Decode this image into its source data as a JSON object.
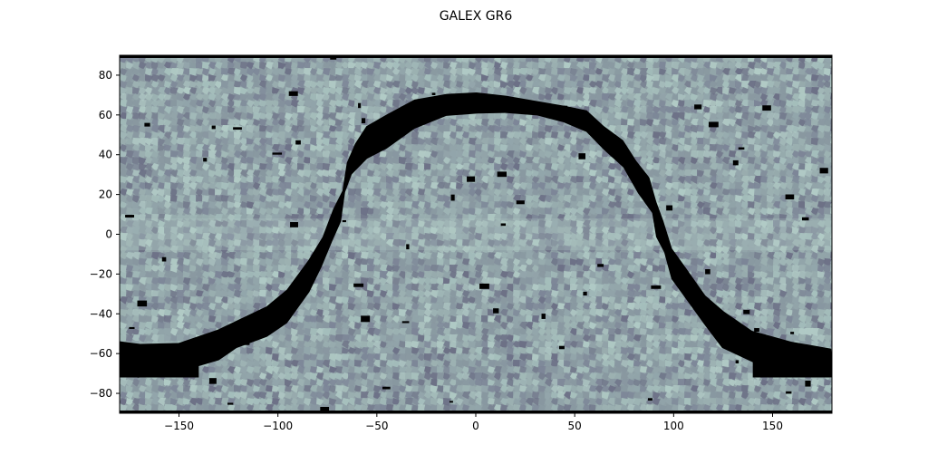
{
  "chart_data": {
    "type": "heatmap",
    "title": "GALEX GR6",
    "xlabel": "",
    "ylabel": "",
    "xlim": [
      -180,
      180
    ],
    "ylim": [
      -90,
      90
    ],
    "x_ticks": [
      -150,
      -100,
      -50,
      0,
      50,
      100,
      150
    ],
    "x_tick_labels": [
      "−150",
      "−100",
      "−50",
      "0",
      "50",
      "100",
      "150"
    ],
    "y_ticks": [
      80,
      60,
      40,
      20,
      0,
      -20,
      -40,
      -60,
      -80
    ],
    "y_tick_labels": [
      "80",
      "60",
      "40",
      "20",
      "0",
      "−20",
      "−40",
      "−60",
      "−80"
    ],
    "grid": false,
    "colormap": "bone",
    "colors": {
      "no_coverage": "#000000",
      "coverage_light": "#a6c0bd",
      "coverage_mid": "#8e9fa5",
      "coverage_dark": "#5e6478"
    },
    "gap_region": {
      "description_free": true,
      "east_track": [
        [
          -180,
          -62
        ],
        [
          -170,
          -64
        ],
        [
          -150,
          -62
        ],
        [
          -130,
          -56
        ],
        [
          -120,
          -50
        ],
        [
          -105,
          -44
        ],
        [
          -95,
          -36
        ],
        [
          -85,
          -22
        ],
        [
          -78,
          -8
        ],
        [
          -72,
          4
        ],
        [
          -68,
          14
        ],
        [
          -65,
          28
        ],
        [
          -62,
          38
        ],
        [
          -55,
          46
        ],
        [
          -45,
          52
        ],
        [
          -30,
          60
        ],
        [
          -15,
          65
        ],
        [
          0,
          66
        ],
        [
          15,
          66
        ],
        [
          30,
          64
        ],
        [
          45,
          60
        ],
        [
          55,
          56
        ],
        [
          65,
          48
        ],
        [
          75,
          40
        ],
        [
          82,
          30
        ],
        [
          88,
          20
        ],
        [
          92,
          8
        ],
        [
          95,
          -2
        ],
        [
          100,
          -14
        ],
        [
          106,
          -26
        ],
        [
          115,
          -38
        ],
        [
          125,
          -48
        ],
        [
          140,
          -56
        ],
        [
          160,
          -62
        ],
        [
          180,
          -64
        ]
      ],
      "width_deg": [
        16,
        16,
        16,
        16,
        16,
        16,
        16,
        16,
        16,
        16,
        16,
        16,
        16,
        16,
        16,
        13,
        11,
        10,
        9,
        9,
        10,
        11,
        12,
        14,
        16,
        16,
        16,
        16,
        16,
        16,
        16,
        16,
        16,
        14,
        12
      ]
    }
  }
}
